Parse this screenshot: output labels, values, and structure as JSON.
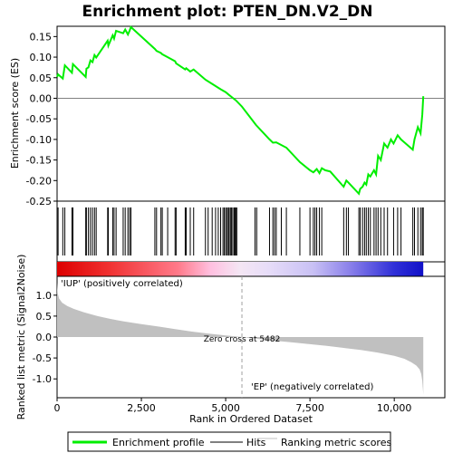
{
  "chart_data": {
    "type": "line",
    "title": "Enrichment plot: PTEN_DN.V2_DN",
    "xlabel": "Rank in Ordered Dataset",
    "top_panel": {
      "ylabel": "Enrichment score (ES)",
      "ylim": [
        -0.25,
        0.175
      ],
      "yticks": [
        -0.25,
        -0.2,
        -0.15,
        -0.1,
        -0.05,
        0.0,
        0.05,
        0.1,
        0.15
      ],
      "ytick_labels": [
        "-0.25",
        "-0.20",
        "-0.15",
        "-0.10",
        "-0.05",
        "0.00",
        "0.05",
        "0.10",
        "0.15"
      ],
      "series": [
        {
          "name": "Enrichment profile",
          "color": "#00ee00",
          "x": [
            0,
            30,
            170,
            230,
            440,
            470,
            850,
            870,
            930,
            990,
            1050,
            1110,
            1160,
            1500,
            1520,
            1650,
            1690,
            1750,
            1960,
            2020,
            2100,
            2150,
            2190,
            2900,
            2950,
            3080,
            3120,
            3280,
            3500,
            3530,
            3800,
            3830,
            3950,
            4050,
            4400,
            4600,
            4850,
            5000,
            5100,
            5300,
            5480,
            5900,
            6300,
            6400,
            6500,
            6800,
            7200,
            7500,
            7600,
            7700,
            7780,
            7850,
            7950,
            8100,
            8500,
            8580,
            8640,
            8950,
            8990,
            9060,
            9120,
            9170,
            9230,
            9290,
            9400,
            9460,
            9520,
            9600,
            9700,
            9800,
            9900,
            9980,
            10100,
            10200,
            10550,
            10600,
            10700,
            10780,
            10830,
            10860
          ],
          "y": [
            0.052,
            0.058,
            0.048,
            0.08,
            0.062,
            0.083,
            0.052,
            0.072,
            0.075,
            0.092,
            0.088,
            0.105,
            0.099,
            0.14,
            0.128,
            0.153,
            0.145,
            0.164,
            0.158,
            0.167,
            0.155,
            0.164,
            0.173,
            0.12,
            0.115,
            0.11,
            0.107,
            0.1,
            0.09,
            0.085,
            0.07,
            0.073,
            0.065,
            0.07,
            0.045,
            0.035,
            0.022,
            0.015,
            0.008,
            -0.005,
            -0.02,
            -0.065,
            -0.1,
            -0.108,
            -0.107,
            -0.12,
            -0.155,
            -0.175,
            -0.18,
            -0.172,
            -0.182,
            -0.17,
            -0.175,
            -0.178,
            -0.215,
            -0.2,
            -0.205,
            -0.232,
            -0.22,
            -0.215,
            -0.205,
            -0.21,
            -0.185,
            -0.19,
            -0.175,
            -0.185,
            -0.14,
            -0.15,
            -0.11,
            -0.12,
            -0.1,
            -0.11,
            -0.09,
            -0.1,
            -0.125,
            -0.1,
            -0.07,
            -0.085,
            -0.04,
            0.005
          ]
        }
      ]
    },
    "hits": [
      30,
      170,
      230,
      440,
      470,
      850,
      870,
      930,
      990,
      1050,
      1110,
      1160,
      1500,
      1520,
      1650,
      1690,
      1750,
      1960,
      2020,
      2100,
      2150,
      2190,
      2900,
      2950,
      3080,
      3120,
      3280,
      3500,
      3530,
      3800,
      3830,
      3950,
      4050,
      4400,
      4480,
      4600,
      4700,
      4780,
      4850,
      4920,
      4960,
      5000,
      5040,
      5080,
      5100,
      5140,
      5170,
      5210,
      5250,
      5280,
      5300,
      5330,
      5870,
      5920,
      6300,
      6400,
      6450,
      6500,
      6650,
      6800,
      7200,
      7500,
      7600,
      7650,
      7700,
      7780,
      7850,
      8500,
      8580,
      8640,
      8950,
      8990,
      9060,
      9120,
      9170,
      9230,
      9290,
      9400,
      9460,
      9520,
      9600,
      9700,
      9800,
      9980,
      10100,
      10200,
      10550,
      10600,
      10700,
      10780,
      10830,
      10860
    ],
    "bottom_panel": {
      "ylabel": "Ranked list metric (Signal2Noise)",
      "ylim": [
        -1.45,
        1.45
      ],
      "yticks": [
        -1.0,
        -0.5,
        0.0,
        0.5,
        1.0
      ],
      "ytick_labels": [
        "-1.0",
        "-0.5",
        "0.0",
        "0.5",
        "1.0"
      ],
      "x": [
        0,
        20,
        60,
        150,
        300,
        500,
        800,
        1200,
        1600,
        2000,
        2500,
        3000,
        3500,
        4000,
        4500,
        5000,
        5482,
        6000,
        6500,
        7000,
        7500,
        8000,
        8500,
        9000,
        9500,
        10000,
        10300,
        10500,
        10650,
        10750,
        10800,
        10830,
        10850,
        10860
      ],
      "y": [
        1.3,
        1.05,
        0.92,
        0.82,
        0.74,
        0.67,
        0.59,
        0.5,
        0.43,
        0.37,
        0.31,
        0.25,
        0.19,
        0.13,
        0.08,
        0.04,
        0.0,
        -0.05,
        -0.09,
        -0.13,
        -0.17,
        -0.21,
        -0.26,
        -0.31,
        -0.37,
        -0.45,
        -0.52,
        -0.6,
        -0.68,
        -0.77,
        -0.88,
        -1.05,
        -1.25,
        -1.38
      ],
      "fill_color": "#c0c0c0",
      "zero_cross_rank": 5482,
      "zero_cross_label": "Zero cross at 5482",
      "positive_label": "'IUP' (positively correlated)",
      "negative_label": "'EP' (negatively correlated)",
      "positive_label_color": "#cc0000",
      "negative_label_color": "#0000cc"
    },
    "xlim": [
      0,
      11500
    ],
    "xticks": [
      0,
      2500,
      5000,
      7500,
      10000
    ],
    "xtick_labels": [
      "0",
      "2,500",
      "5,000",
      "7,500",
      "10,000"
    ],
    "max_rank": 10860,
    "legend": {
      "placement": "bottom",
      "entries": [
        {
          "name": "Enrichment profile",
          "color": "#00ee00"
        },
        {
          "name": "Hits",
          "color": "#000000"
        },
        {
          "name": "Ranking metric scores",
          "color": "#c0c0c0"
        }
      ]
    }
  }
}
